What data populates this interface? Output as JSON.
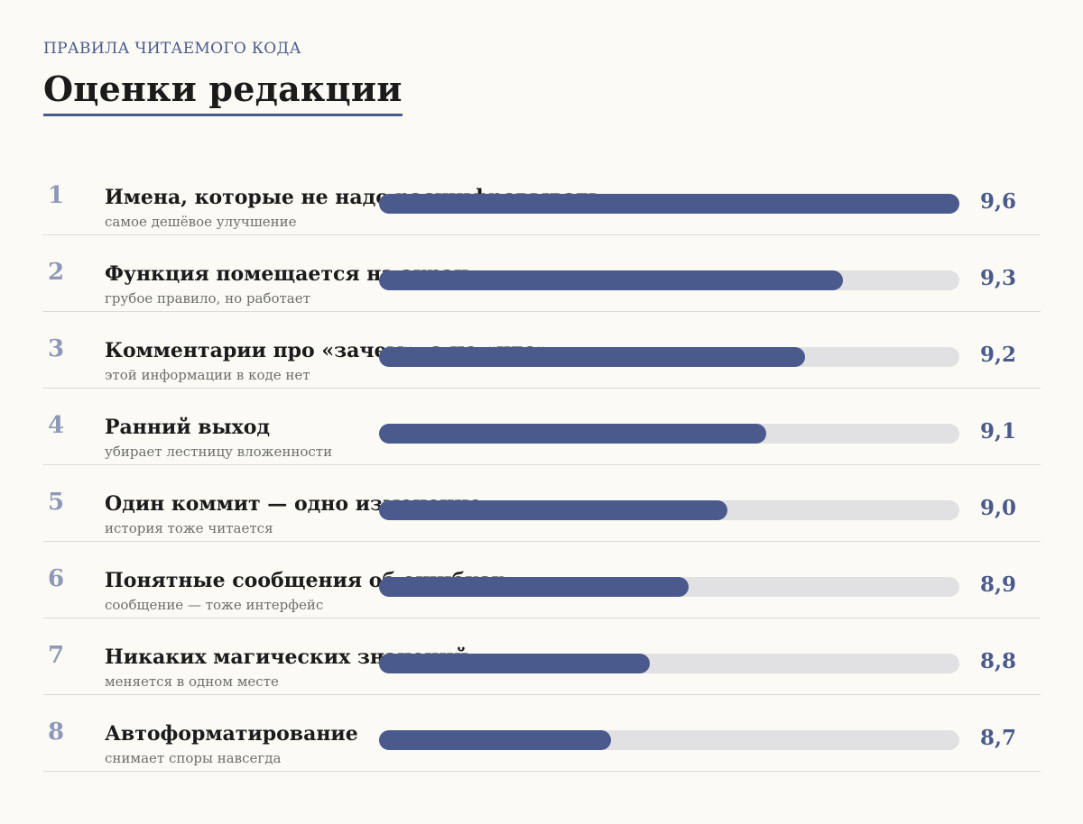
{
  "header": {
    "kicker": "ПРАВИЛА ЧИТАЕМОГО КОДА",
    "title": "Оценки редакции"
  },
  "colors": {
    "background": "#fbfaf5",
    "accent": "#4a5a8c",
    "track": "#e1e1e4",
    "rank": "#8e98b8",
    "text": "#1b1b1b",
    "muted": "#6e6e6e"
  },
  "chart_data": {
    "type": "bar",
    "orientation": "horizontal",
    "xlim": [
      8.1,
      9.6
    ],
    "grid": false,
    "legend": "none",
    "title": "Оценки редакции",
    "ranks": [
      "1",
      "2",
      "3",
      "4",
      "5",
      "6",
      "7",
      "8"
    ],
    "categories": [
      "Имена, которые не надо расшифровывать",
      "Функция помещается на экран",
      "Комментарии про «зачем», а не «что»",
      "Ранний выход",
      "Один коммит — одно изменение",
      "Понятные сообщения об ошибках",
      "Никаких магических значений",
      "Автоформатирование"
    ],
    "notes": [
      "самое дешёвое улучшение",
      "грубое правило, но работает",
      "этой информации в коде нет",
      "убирает лестницу вложенности",
      "история тоже читается",
      "сообщение — тоже интерфейс",
      "меняется в одном месте",
      "снимает споры навсегда"
    ],
    "values": [
      9.6,
      9.3,
      9.2,
      9.1,
      9.0,
      8.9,
      8.8,
      8.7
    ],
    "value_labels": [
      "9,6",
      "9,3",
      "9,2",
      "9,1",
      "9,0",
      "8,9",
      "8,8",
      "8,7"
    ]
  }
}
